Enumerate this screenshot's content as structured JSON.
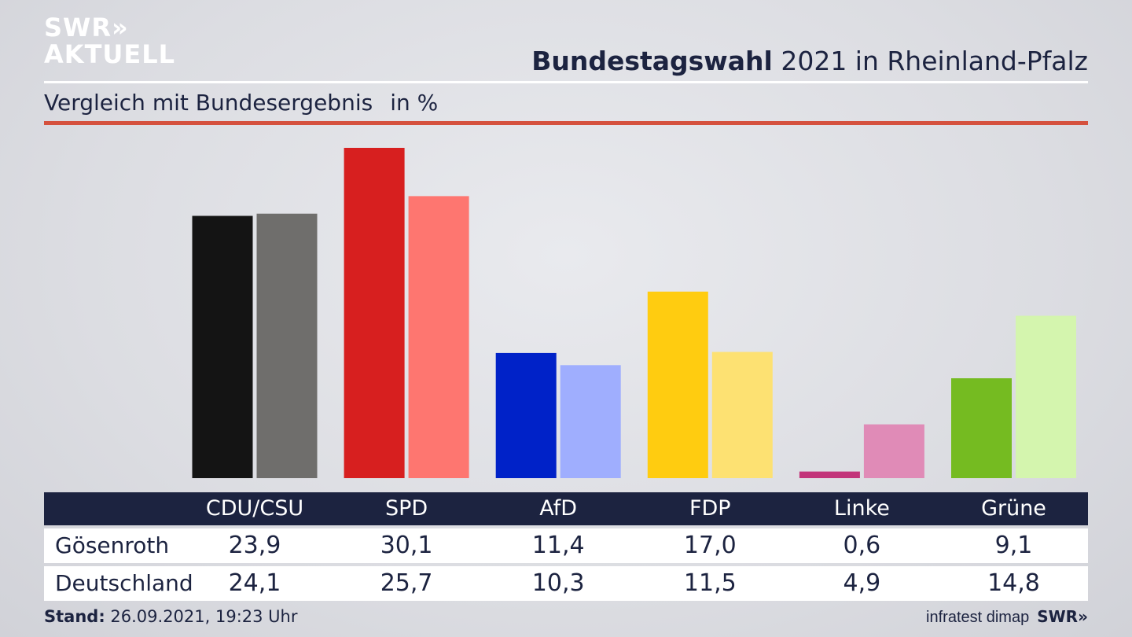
{
  "logo": {
    "line1": "SWR»",
    "line2": "AKTUELL"
  },
  "header": {
    "title_bold": "Bundestagswahl",
    "title_rest": " 2021 in Rheinland-Pfalz",
    "subtitle": "Vergleich mit Bundesergebnis",
    "unit": "in %"
  },
  "chart_data": {
    "type": "bar",
    "categories": [
      "CDU/CSU",
      "SPD",
      "AfD",
      "FDP",
      "Linke",
      "Grüne"
    ],
    "series": [
      {
        "name": "Gösenroth",
        "values": [
          23.9,
          30.1,
          11.4,
          17.0,
          0.6,
          9.1
        ],
        "colors": [
          "#141414",
          "#d71f1f",
          "#0022c8",
          "#ffcc10",
          "#c2347a",
          "#75bb21"
        ]
      },
      {
        "name": "Deutschland",
        "values": [
          24.1,
          25.7,
          10.3,
          11.5,
          4.9,
          14.8
        ],
        "colors": [
          "#6f6e6c",
          "#fe7670",
          "#9faefe",
          "#fde172",
          "#e08bb7",
          "#d4f5ae"
        ]
      }
    ],
    "ylim": [
      0,
      32
    ],
    "grid": false
  },
  "table": {
    "headers": [
      "CDU/CSU",
      "SPD",
      "AfD",
      "FDP",
      "Linke",
      "Grüne"
    ],
    "rows": [
      {
        "label": "Gösenroth",
        "values": [
          "23,9",
          "30,1",
          "11,4",
          "17,0",
          "0,6",
          "9,1"
        ]
      },
      {
        "label": "Deutschland",
        "values": [
          "24,1",
          "25,7",
          "10,3",
          "11,5",
          "4,9",
          "14,8"
        ]
      }
    ]
  },
  "footer": {
    "stand_label": "Stand:",
    "stand_value": " 26.09.2021, 19:23 Uhr",
    "source": "infratest dimap",
    "brand": "SWR»"
  }
}
